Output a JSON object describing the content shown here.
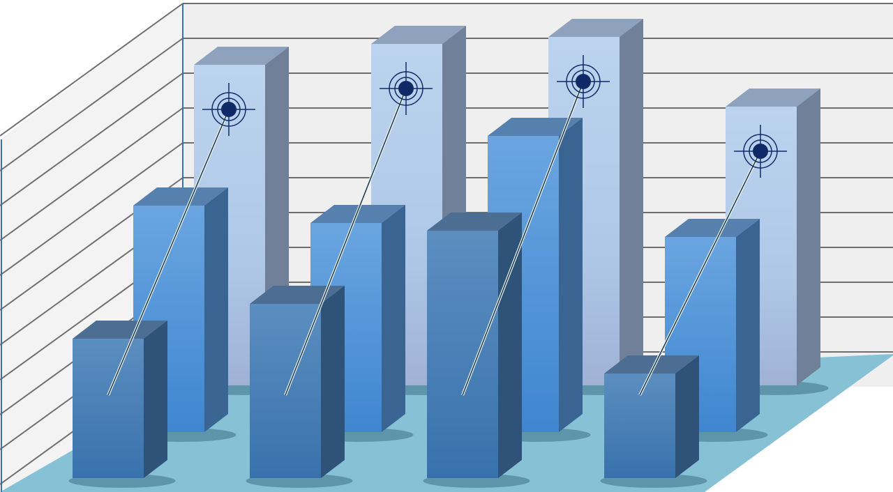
{
  "chart_data": {
    "type": "bar",
    "style": "3d-clustered",
    "title": "",
    "xlabel": "",
    "ylabel": "",
    "grid": true,
    "ylim": [
      0,
      11
    ],
    "categories": [
      "",
      "",
      "",
      ""
    ],
    "series": [
      {
        "values": [
          9.2,
          9.8,
          10.0,
          8.0
        ],
        "color": "#b4cdeb",
        "markers": "target"
      },
      {
        "values": [
          6.5,
          6.0,
          8.5,
          5.6
        ],
        "color": "#4f8fd4"
      },
      {
        "values": [
          4.0,
          5.0,
          7.1,
          3.0
        ],
        "color": "#4a7fb5"
      }
    ]
  },
  "colors": {
    "wall": "#efefef",
    "gridline": "#6e6e6e",
    "floor": "#86c1d6",
    "wall_edge": "#3a6fb0",
    "target": "#0f2a66"
  }
}
